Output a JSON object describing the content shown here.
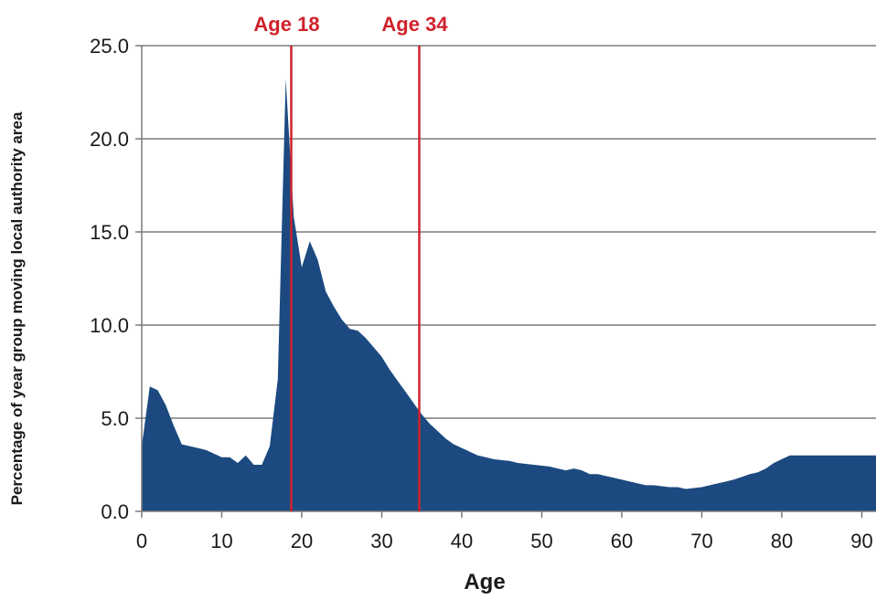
{
  "chart_data": {
    "type": "area",
    "title": "",
    "xlabel": "Age",
    "ylabel": "Percentage of year group moving local authority area",
    "xlim": [
      0,
      92
    ],
    "ylim": [
      0,
      25
    ],
    "x_ticks": [
      0,
      10,
      20,
      30,
      40,
      50,
      60,
      70,
      80,
      90
    ],
    "y_ticks": [
      0,
      5,
      10,
      15,
      20,
      25
    ],
    "y_tick_labels": [
      "0.0",
      "5.0",
      "10.0",
      "15.0",
      "20.0",
      "25.0"
    ],
    "grid": "horizontal",
    "series": [
      {
        "color": "#1c4a80",
        "x": [
          0,
          1,
          2,
          3,
          4,
          5,
          6,
          7,
          8,
          9,
          10,
          11,
          12,
          13,
          14,
          15,
          16,
          17,
          18,
          19,
          20,
          21,
          22,
          23,
          24,
          25,
          26,
          27,
          28,
          29,
          30,
          31,
          32,
          33,
          34,
          35,
          36,
          37,
          38,
          39,
          40,
          41,
          42,
          43,
          44,
          45,
          46,
          47,
          48,
          49,
          50,
          51,
          52,
          53,
          54,
          55,
          56,
          57,
          58,
          59,
          60,
          61,
          62,
          63,
          64,
          65,
          66,
          67,
          68,
          69,
          70,
          71,
          72,
          73,
          74,
          75,
          76,
          77,
          78,
          79,
          80,
          81,
          82,
          83,
          84,
          85,
          86,
          87,
          88,
          89,
          90,
          91,
          92
        ],
        "values": [
          3.5,
          6.7,
          6.5,
          5.7,
          4.6,
          3.6,
          3.5,
          3.4,
          3.3,
          3.1,
          2.9,
          2.9,
          2.6,
          3.0,
          2.5,
          2.5,
          3.5,
          7.1,
          23.2,
          15.8,
          13.1,
          14.5,
          13.5,
          11.8,
          11.0,
          10.3,
          9.8,
          9.7,
          9.3,
          8.8,
          8.3,
          7.6,
          7.0,
          6.4,
          5.8,
          5.2,
          4.7,
          4.3,
          3.9,
          3.6,
          3.4,
          3.2,
          3.0,
          2.9,
          2.8,
          2.75,
          2.7,
          2.6,
          2.55,
          2.5,
          2.45,
          2.4,
          2.3,
          2.2,
          2.3,
          2.2,
          2.0,
          2.0,
          1.9,
          1.8,
          1.7,
          1.6,
          1.5,
          1.4,
          1.4,
          1.35,
          1.3,
          1.3,
          1.2,
          1.25,
          1.3,
          1.4,
          1.5,
          1.6,
          1.7,
          1.85,
          2.0,
          2.1,
          2.3,
          2.6,
          2.8,
          3.0,
          3.0,
          3.0,
          3.0,
          3.0,
          3.0,
          3.0,
          3.0,
          3.0,
          3.0,
          3.0,
          3.0
        ]
      }
    ],
    "markers": [
      {
        "label": "Age 18",
        "x": 18,
        "color": "#d0222c"
      },
      {
        "label": "Age 34",
        "x": 34,
        "color": "#d0222c"
      }
    ]
  }
}
